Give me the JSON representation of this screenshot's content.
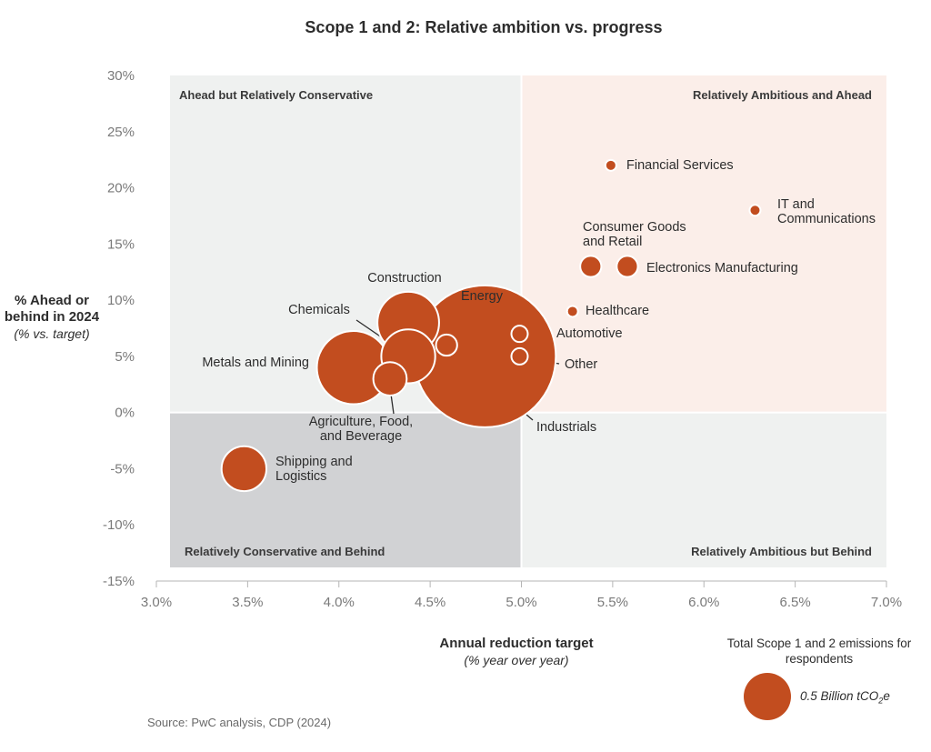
{
  "chart_data": {
    "type": "bubble",
    "title": "Scope 1 and 2: Relative ambition vs. progress",
    "xlabel": "Annual reduction target",
    "xlabel_sub": "(% year over year)",
    "ylabel": "% Ahead or behind in 2024",
    "ylabel_sub": "(% vs. target)",
    "xlim": [
      3.0,
      7.0
    ],
    "ylim": [
      -15,
      30
    ],
    "x_ticks": [
      "3.0%",
      "3.5%",
      "4.0%",
      "4.5%",
      "5.0%",
      "5.5%",
      "6.0%",
      "6.5%",
      "7.0%"
    ],
    "x_tick_values": [
      3.0,
      3.5,
      4.0,
      4.5,
      5.0,
      5.5,
      6.0,
      6.5,
      7.0
    ],
    "y_ticks": [
      "30%",
      "25%",
      "20%",
      "15%",
      "10%",
      "5%",
      "0%",
      "-5%",
      "-10%",
      "-15%"
    ],
    "y_tick_values": [
      30,
      25,
      20,
      15,
      10,
      5,
      0,
      -5,
      -10,
      -15
    ],
    "quadrants": [
      {
        "label": "Ahead but Relatively Conservative",
        "color": "#eff1f0"
      },
      {
        "label": "Relatively Ambitious and Ahead",
        "color": "#fbeee9"
      },
      {
        "label": "Relatively Conservative and Behind",
        "color": "#d1d2d4"
      },
      {
        "label": "Relatively Ambitious but Behind",
        "color": "#eff1f0"
      }
    ],
    "bubble_color": "#c24d1f",
    "series": [
      {
        "name": "Financial Services",
        "x": 5.49,
        "y": 22,
        "size": 0.02
      },
      {
        "name": "IT and Communications",
        "x": 6.28,
        "y": 18,
        "size": 0.02
      },
      {
        "name": "Consumer Goods and Retail",
        "x": 5.38,
        "y": 13,
        "size": 0.1
      },
      {
        "name": "Electronics Manufacturing",
        "x": 5.58,
        "y": 13,
        "size": 0.1
      },
      {
        "name": "Healthcare",
        "x": 5.28,
        "y": 9,
        "size": 0.02
      },
      {
        "name": "Construction",
        "x": 4.38,
        "y": 8,
        "size": 0.85
      },
      {
        "name": "Energy",
        "x": 4.8,
        "y": 5,
        "size": 4.5
      },
      {
        "name": "Chemicals",
        "x": 4.38,
        "y": 5,
        "size": 0.65
      },
      {
        "name": "Metals and Mining",
        "x": 4.08,
        "y": 4,
        "size": 1.2
      },
      {
        "name": "Agriculture, Food, and Beverage",
        "x": 4.28,
        "y": 3,
        "size": 0.25
      },
      {
        "name": "Industrials",
        "x": 4.59,
        "y": 6,
        "size": 0.1
      },
      {
        "name": "Automotive",
        "x": 4.99,
        "y": 7,
        "size": 0.06
      },
      {
        "name": "Other",
        "x": 4.99,
        "y": 5,
        "size": 0.06
      },
      {
        "name": "Shipping and Logistics",
        "x": 3.48,
        "y": -5,
        "size": 0.45
      }
    ],
    "legend": {
      "title": "Total Scope 1 and 2 emissions for respondents",
      "value": "0.5 Billion tCO2e"
    }
  },
  "source": "Source: PwC analysis, CDP (2024)"
}
